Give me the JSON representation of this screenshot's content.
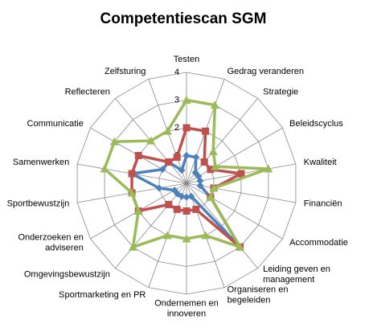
{
  "chart_data": {
    "type": "radar",
    "title": "Competentiescan SGM",
    "categories": [
      "Testen",
      "Gedrag veranderen",
      "Strategie",
      "Beleidscyclus",
      "Kwaliteit",
      "Financiën",
      "Accommodatie",
      "Leiding geven en\nmanagement",
      "Organiseren en\nbegeleiden",
      "Ondernemen en\ninnoveren",
      "Sportmarketing en PR",
      "Omgevingsbewustzijn",
      "Onderzoeken en\nadviseren",
      "Sportbewustzijn",
      "Samenwerken",
      "Communicatie",
      "Reflecteren",
      "Zelfsturing"
    ],
    "series": [
      {
        "color": "#4f81bd",
        "marker": "diamond",
        "values": [
          1,
          1,
          0.5,
          0.5,
          0.5,
          0.5,
          1,
          3,
          0.5,
          0.5,
          0.5,
          0.5,
          0.5,
          1,
          2,
          1,
          1,
          0.5
        ]
      },
      {
        "color": "#c0504d",
        "marker": "square",
        "values": [
          2,
          2,
          1,
          1,
          2,
          1,
          1,
          3,
          1,
          1,
          1,
          1,
          2,
          2,
          2,
          2,
          1,
          1
        ]
      },
      {
        "color": "#9bbb59",
        "marker": "triangle",
        "values": [
          3,
          3,
          1.5,
          1.2,
          3,
          1,
          1,
          3,
          2,
          2,
          2,
          3,
          2,
          2,
          3,
          3,
          2,
          2
        ]
      }
    ],
    "ylim": [
      0,
      4
    ],
    "yticks": [
      1,
      2,
      3,
      4
    ],
    "grid": true
  }
}
